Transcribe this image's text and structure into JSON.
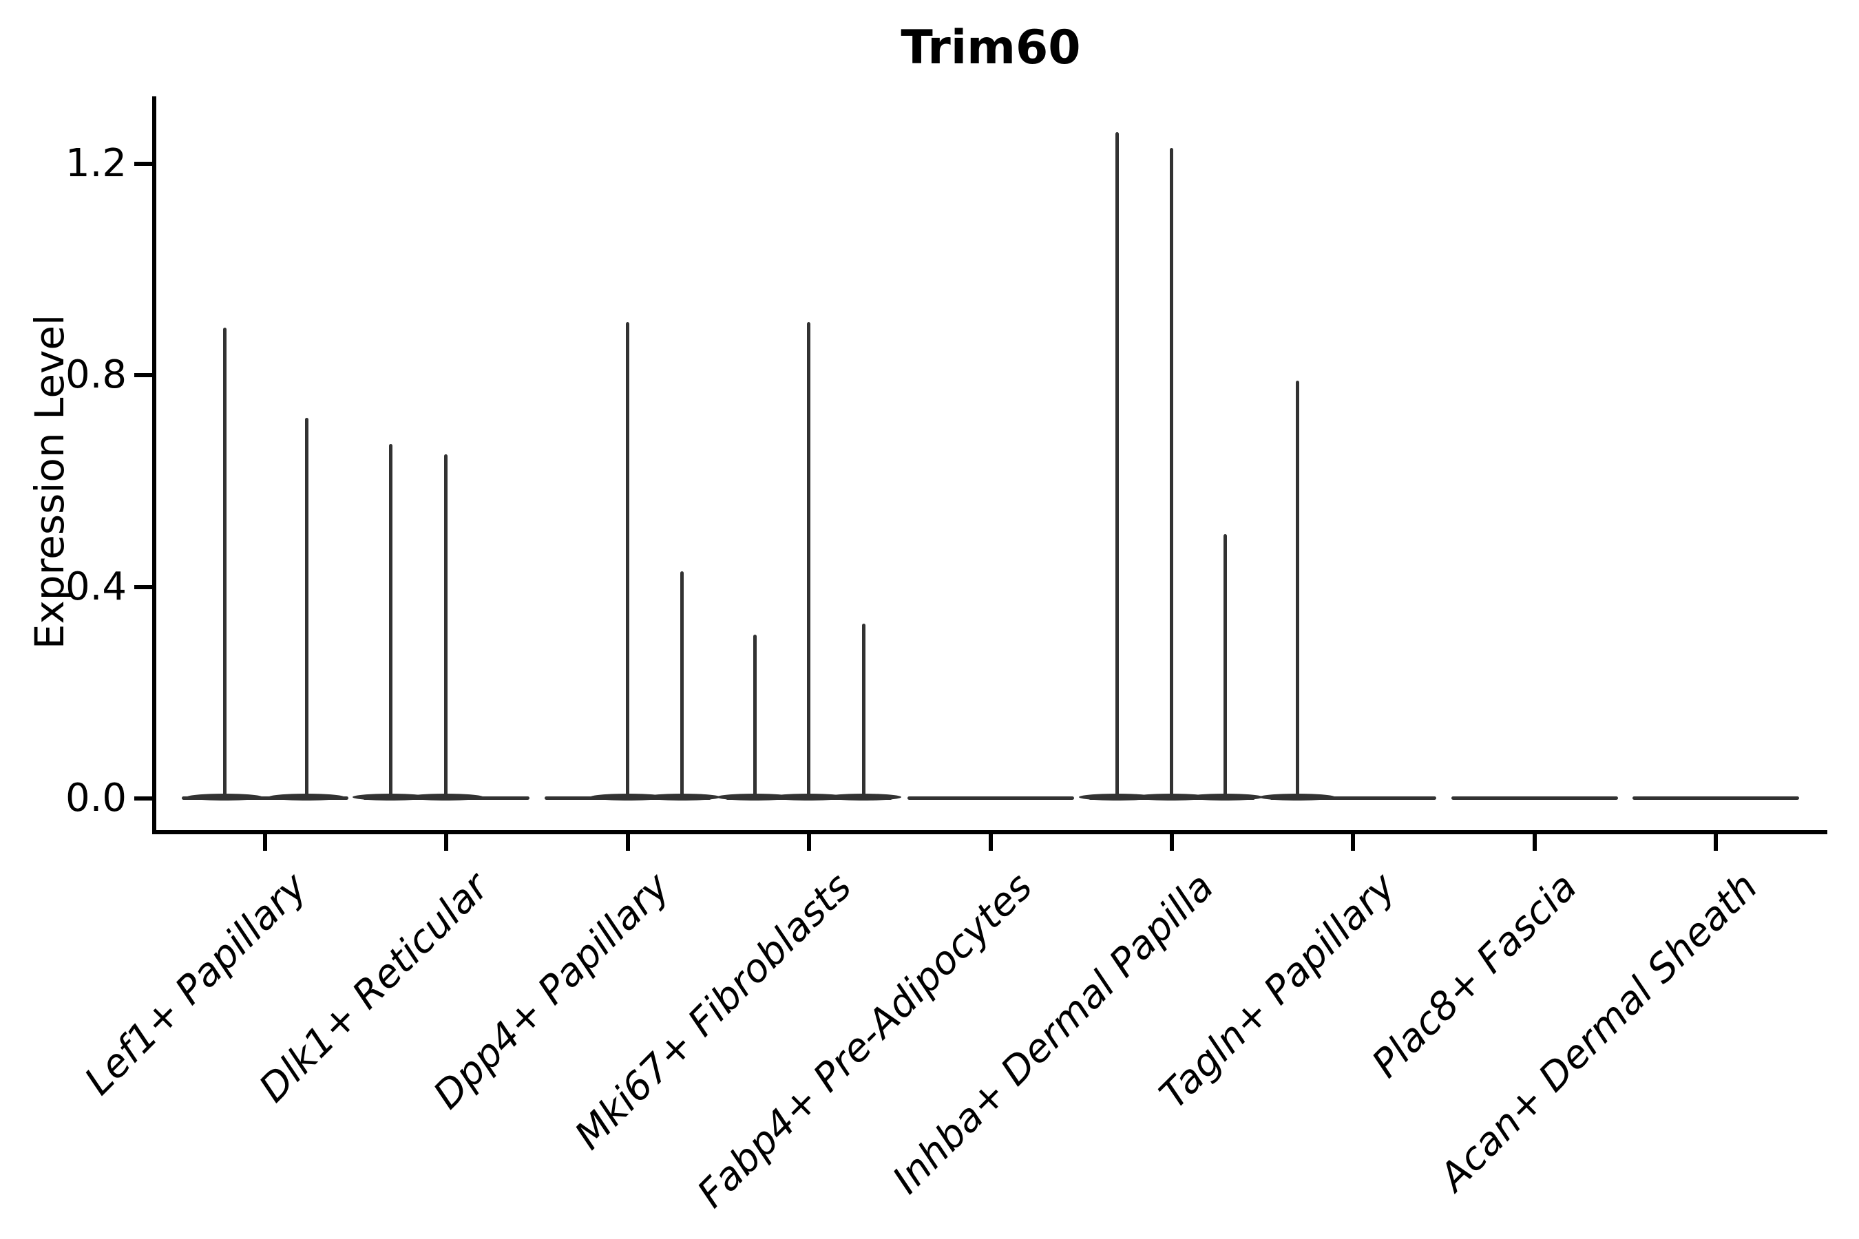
{
  "title": "Trim60",
  "chart_data": {
    "type": "violin",
    "title": "Trim60",
    "xlabel": "",
    "ylabel": "Expression Level",
    "ylim": [
      -0.06,
      1.33
    ],
    "grid": false,
    "legend": "none",
    "y_ticks": [
      {
        "label": "0.0",
        "value": 0.0
      },
      {
        "label": "0.4",
        "value": 0.4
      },
      {
        "label": "0.8",
        "value": 0.8
      },
      {
        "label": "1.2",
        "value": 1.2
      }
    ],
    "description": "Violin plot of Trim60 expression; most cells at 0 so violins collapse to a flat base with thin spikes up to the maximum expression per sub-violin.",
    "categories": [
      {
        "label": "Lef1+ Papillary",
        "violins": [
          {
            "offset": -59,
            "max": 0.89
          },
          {
            "offset": 60,
            "max": 0.72
          }
        ]
      },
      {
        "label": "Dlk1+ Reticular",
        "violins": [
          {
            "offset": -81,
            "max": 0.67
          },
          {
            "offset": -1,
            "max": 0.65
          }
        ]
      },
      {
        "label": "Dpp4+ Papillary",
        "violins": [
          {
            "offset": 0,
            "max": 0.9
          },
          {
            "offset": 79,
            "max": 0.43
          }
        ]
      },
      {
        "label": "Mki67+ Fibroblasts",
        "violins": [
          {
            "offset": -79,
            "max": 0.31
          },
          {
            "offset": -1,
            "max": 0.9
          },
          {
            "offset": 79,
            "max": 0.33
          }
        ]
      },
      {
        "label": "Fabp4+ Pre-Adipocytes",
        "violins": []
      },
      {
        "label": "Inhba+ Dermal Papilla",
        "violins": [
          {
            "offset": -80,
            "max": 1.26
          },
          {
            "offset": -1,
            "max": 1.23
          },
          {
            "offset": 77,
            "max": 0.5
          }
        ]
      },
      {
        "label": "Tagln+ Papillary",
        "violins": [
          {
            "offset": -81,
            "max": 0.79
          }
        ]
      },
      {
        "label": "Plac8+ Fascia",
        "violins": []
      },
      {
        "label": "Acan+ Dermal Sheath",
        "violins": []
      }
    ],
    "colors": {
      "ink": "#000000",
      "violin_stroke": "#323232",
      "background": "#ffffff"
    }
  }
}
